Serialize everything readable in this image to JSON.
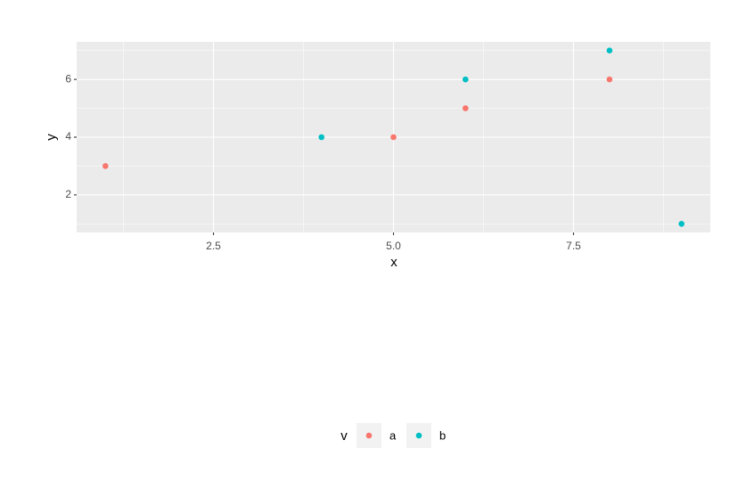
{
  "chart_data": {
    "type": "scatter",
    "x_label": "x",
    "y_label": "y",
    "xlim": [
      0.6,
      9.4
    ],
    "ylim": [
      0.7,
      7.3
    ],
    "xticks": [
      {
        "value": 2.5,
        "label": "2.5"
      },
      {
        "value": 5,
        "label": "5.0"
      },
      {
        "value": 7.5,
        "label": "7.5"
      }
    ],
    "yticks": [
      2,
      4,
      6
    ],
    "xminor": [
      1.25,
      3.75,
      6.25,
      8.75
    ],
    "yminor": [
      1,
      3,
      5,
      7
    ],
    "grid": true,
    "legend_title": "v",
    "legend_position": "bottom",
    "series": [
      {
        "name": "a",
        "color": "#F8766D",
        "x": [
          1,
          5,
          6,
          8
        ],
        "values": [
          3,
          4,
          5,
          6
        ]
      },
      {
        "name": "b",
        "color": "#00BFC4",
        "x": [
          4,
          6,
          8,
          9
        ],
        "values": [
          4,
          6,
          7,
          1
        ]
      }
    ]
  }
}
